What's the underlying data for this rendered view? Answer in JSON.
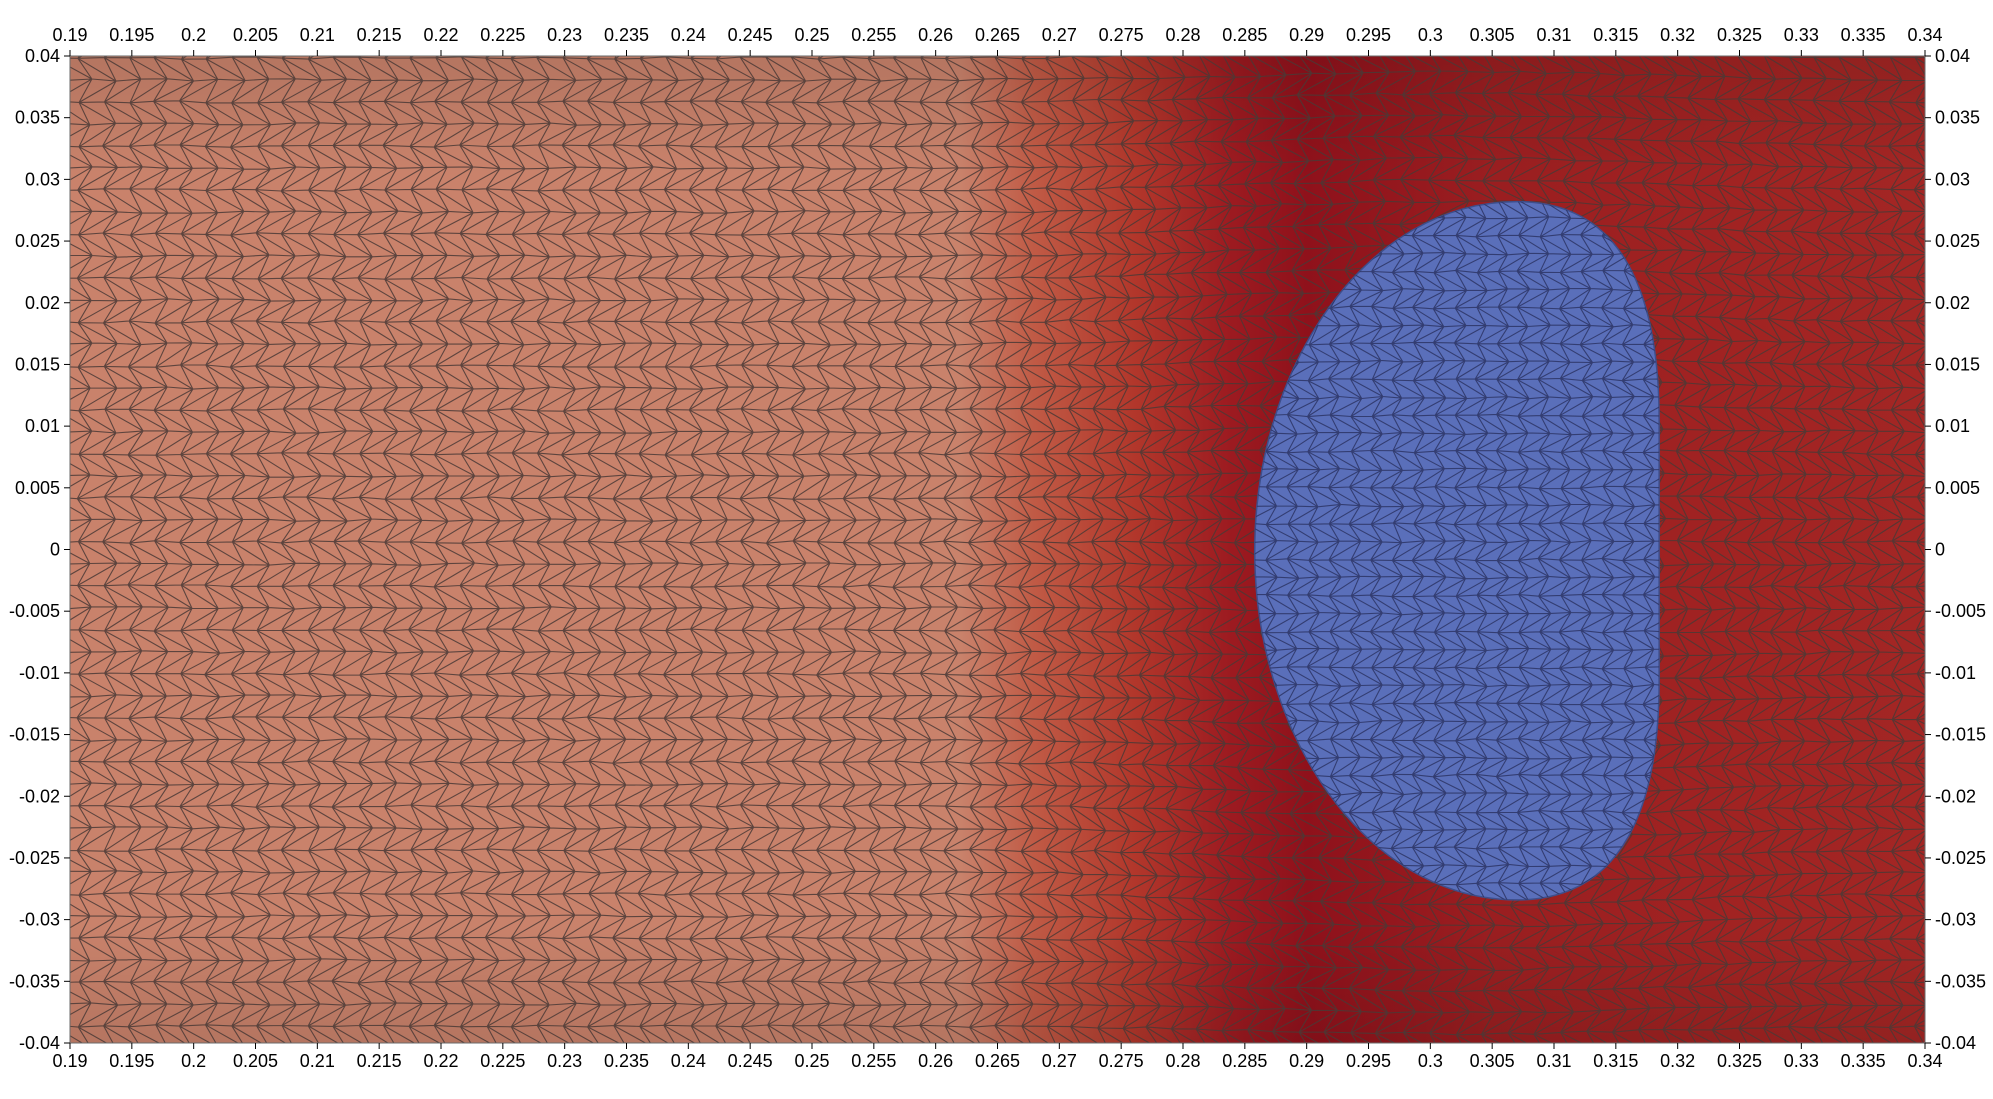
{
  "plot": {
    "x_range": [
      0.19,
      0.34
    ],
    "y_range": [
      -0.04,
      0.04
    ],
    "x_ticks": [
      "0.19",
      "0.195",
      "0.2",
      "0.205",
      "0.21",
      "0.215",
      "0.22",
      "0.225",
      "0.23",
      "0.235",
      "0.24",
      "0.245",
      "0.25",
      "0.255",
      "0.26",
      "0.265",
      "0.27",
      "0.275",
      "0.28",
      "0.285",
      "0.29",
      "0.295",
      "0.3",
      "0.305",
      "0.31",
      "0.315",
      "0.32",
      "0.325",
      "0.33",
      "0.335",
      "0.34"
    ],
    "y_ticks": [
      "0.04",
      "0.035",
      "0.03",
      "0.025",
      "0.02",
      "0.015",
      "0.01",
      "0.005",
      "0",
      "-0.005",
      "-0.01",
      "-0.015",
      "-0.02",
      "-0.025",
      "-0.03",
      "-0.035",
      "-0.04"
    ],
    "field_gradient": [
      {
        "x": 0.19,
        "color": "#c9826b"
      },
      {
        "x": 0.262,
        "color": "#c9826b"
      },
      {
        "x": 0.268,
        "color": "#c05a45"
      },
      {
        "x": 0.276,
        "color": "#b2372b"
      },
      {
        "x": 0.284,
        "color": "#9c1a20"
      },
      {
        "x": 0.29,
        "color": "#8f111b"
      },
      {
        "x": 0.305,
        "color": "#9a1e20"
      },
      {
        "x": 0.325,
        "color": "#a12322"
      },
      {
        "x": 0.34,
        "color": "#a32624"
      }
    ],
    "bubble": {
      "color": "#5a6fba",
      "x_left": 0.2858,
      "x_right": 0.3185,
      "x_top_center": 0.307,
      "y_top": 0.0282,
      "y_bottom": -0.0284,
      "label": ""
    },
    "mesh_color": "#4a3a36"
  }
}
